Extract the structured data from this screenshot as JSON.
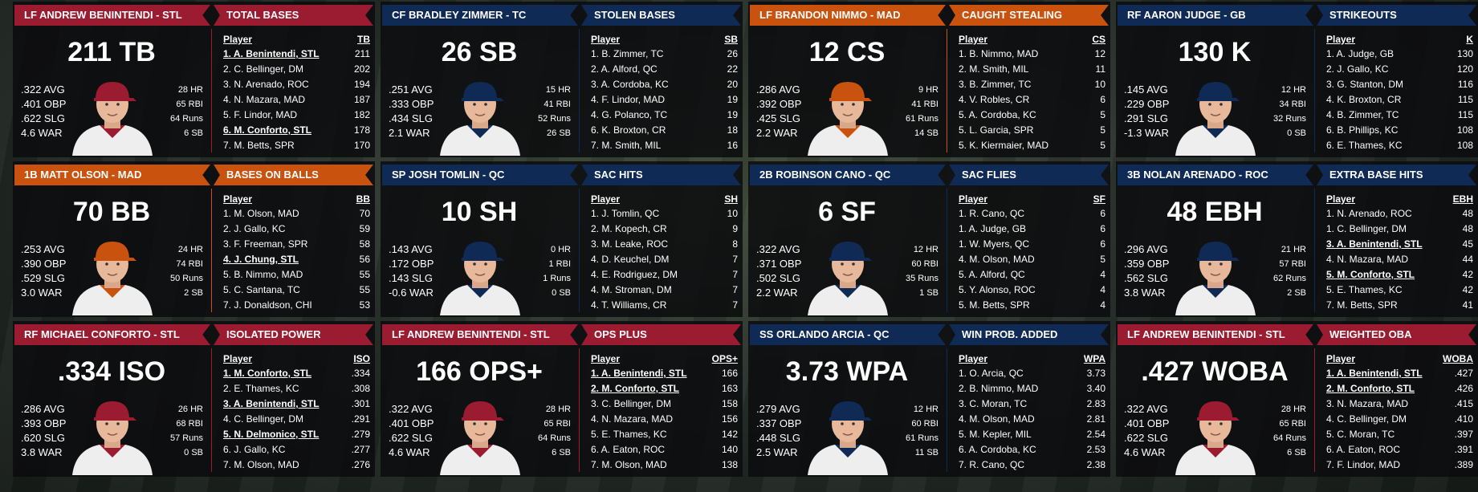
{
  "panels": [
    {
      "color": "#9b1b30",
      "player_banner": "LF ANDREW BENINTENDI - STL",
      "stat_banner": "TOTAL BASES",
      "headline": "211 TB",
      "left_stats": [
        ".322 AVG",
        ".401 OBP",
        ".622 SLG",
        "4.6 WAR"
      ],
      "right_stats": [
        "28 HR",
        "65 RBI",
        "64 Runs",
        "6 SB"
      ],
      "table": {
        "header": [
          "Player",
          "TB"
        ],
        "rows": [
          {
            "player": "1. A. Benintendi, STL",
            "value": "211",
            "highlight": true
          },
          {
            "player": "2. C. Bellinger, DM",
            "value": "202"
          },
          {
            "player": "3. N. Arenado, ROC",
            "value": "194"
          },
          {
            "player": "4. N. Mazara, MAD",
            "value": "187"
          },
          {
            "player": "5. F. Lindor, MAD",
            "value": "182"
          },
          {
            "player": "6. M. Conforto, STL",
            "value": "178",
            "highlight": true
          },
          {
            "player": "7. M. Betts, SPR",
            "value": "170"
          }
        ]
      }
    },
    {
      "color": "#0f2a55",
      "player_banner": "CF BRADLEY ZIMMER - TC",
      "stat_banner": "STOLEN BASES",
      "headline": "26 SB",
      "left_stats": [
        ".251 AVG",
        ".333 OBP",
        ".434 SLG",
        "2.1 WAR"
      ],
      "right_stats": [
        "15 HR",
        "41 RBI",
        "52 Runs",
        "26 SB"
      ],
      "table": {
        "header": [
          "Player",
          "SB"
        ],
        "rows": [
          {
            "player": "1. B. Zimmer, TC",
            "value": "26"
          },
          {
            "player": "2. A. Alford, QC",
            "value": "22"
          },
          {
            "player": "3. A. Cordoba, KC",
            "value": "20"
          },
          {
            "player": "4. F. Lindor, MAD",
            "value": "19"
          },
          {
            "player": "4. G. Polanco, TC",
            "value": "19"
          },
          {
            "player": "6. K. Broxton, CR",
            "value": "18"
          },
          {
            "player": "7. M. Smith, MIL",
            "value": "16"
          }
        ]
      }
    },
    {
      "color": "#c9530e",
      "player_banner": "LF BRANDON NIMMO - MAD",
      "stat_banner": "CAUGHT STEALING",
      "headline": "12 CS",
      "left_stats": [
        ".286 AVG",
        ".392 OBP",
        ".425 SLG",
        "2.2 WAR"
      ],
      "right_stats": [
        "9 HR",
        "41 RBI",
        "61 Runs",
        "14 SB"
      ],
      "table": {
        "header": [
          "Player",
          "CS"
        ],
        "rows": [
          {
            "player": "1. B. Nimmo, MAD",
            "value": "12"
          },
          {
            "player": "2. M. Smith, MIL",
            "value": "11"
          },
          {
            "player": "3. B. Zimmer, TC",
            "value": "10"
          },
          {
            "player": "4. V. Robles, CR",
            "value": "6"
          },
          {
            "player": "5. A. Cordoba, KC",
            "value": "5"
          },
          {
            "player": "5. L. Garcia, SPR",
            "value": "5"
          },
          {
            "player": "5. K. Kiermaier, MAD",
            "value": "5"
          }
        ]
      }
    },
    {
      "color": "#0f2a55",
      "player_banner": "RF AARON JUDGE - GB",
      "stat_banner": "STRIKEOUTS",
      "headline": "130 K",
      "left_stats": [
        ".145 AVG",
        ".229 OBP",
        ".291 SLG",
        "-1.3 WAR"
      ],
      "right_stats": [
        "12 HR",
        "34 RBI",
        "32 Runs",
        "0 SB"
      ],
      "table": {
        "header": [
          "Player",
          "K"
        ],
        "rows": [
          {
            "player": "1. A. Judge, GB",
            "value": "130"
          },
          {
            "player": "2. J. Gallo, KC",
            "value": "120"
          },
          {
            "player": "3. G. Stanton, DM",
            "value": "116"
          },
          {
            "player": "4. K. Broxton, CR",
            "value": "115"
          },
          {
            "player": "4. B. Zimmer, TC",
            "value": "115"
          },
          {
            "player": "6. B. Phillips, KC",
            "value": "108"
          },
          {
            "player": "6. E. Thames, KC",
            "value": "108"
          }
        ]
      }
    },
    {
      "color": "#c9530e",
      "player_banner": "1B MATT OLSON - MAD",
      "stat_banner": "BASES ON BALLS",
      "headline": "70 BB",
      "left_stats": [
        ".253 AVG",
        ".390 OBP",
        ".529 SLG",
        "3.0 WAR"
      ],
      "right_stats": [
        "24 HR",
        "74 RBI",
        "50 Runs",
        "2 SB"
      ],
      "table": {
        "header": [
          "Player",
          "BB"
        ],
        "rows": [
          {
            "player": "1. M. Olson, MAD",
            "value": "70"
          },
          {
            "player": "2. J. Gallo, KC",
            "value": "59"
          },
          {
            "player": "3. F. Freeman, SPR",
            "value": "58"
          },
          {
            "player": "4. J. Chung, STL",
            "value": "56",
            "highlight": true
          },
          {
            "player": "5. B. Nimmo, MAD",
            "value": "55"
          },
          {
            "player": "5. C. Santana, TC",
            "value": "55"
          },
          {
            "player": "7. J. Donaldson, CHI",
            "value": "53"
          }
        ]
      }
    },
    {
      "color": "#0f2a55",
      "player_banner": "SP JOSH TOMLIN - QC",
      "stat_banner": "SAC HITS",
      "headline": "10 SH",
      "left_stats": [
        ".143 AVG",
        ".172 OBP",
        ".143 SLG",
        "-0.6 WAR"
      ],
      "right_stats": [
        "0 HR",
        "1 RBI",
        "1 Runs",
        "0 SB"
      ],
      "table": {
        "header": [
          "Player",
          "SH"
        ],
        "rows": [
          {
            "player": "1. J. Tomlin, QC",
            "value": "10"
          },
          {
            "player": "2. M. Kopech, CR",
            "value": "9"
          },
          {
            "player": "3. M. Leake, ROC",
            "value": "8"
          },
          {
            "player": "4. D. Keuchel, DM",
            "value": "7"
          },
          {
            "player": "4. E. Rodriguez, DM",
            "value": "7"
          },
          {
            "player": "4. M. Stroman, DM",
            "value": "7"
          },
          {
            "player": "4. T. Williams, CR",
            "value": "7"
          }
        ]
      }
    },
    {
      "color": "#0f2a55",
      "player_banner": "2B ROBINSON CANO - QC",
      "stat_banner": "SAC FLIES",
      "headline": "6 SF",
      "left_stats": [
        ".322 AVG",
        ".371 OBP",
        ".502 SLG",
        "2.2 WAR"
      ],
      "right_stats": [
        "12 HR",
        "60 RBI",
        "35 Runs",
        "1 SB"
      ],
      "table": {
        "header": [
          "Player",
          "SF"
        ],
        "rows": [
          {
            "player": "1. R. Cano, QC",
            "value": "6"
          },
          {
            "player": "1. A. Judge, GB",
            "value": "6"
          },
          {
            "player": "1. W. Myers, QC",
            "value": "6"
          },
          {
            "player": "4. M. Olson, MAD",
            "value": "5"
          },
          {
            "player": "5. A. Alford, QC",
            "value": "4"
          },
          {
            "player": "5. Y. Alonso, ROC",
            "value": "4"
          },
          {
            "player": "5. M. Betts, SPR",
            "value": "4"
          }
        ]
      }
    },
    {
      "color": "#0f2a55",
      "player_banner": "3B NOLAN ARENADO - ROC",
      "stat_banner": "EXTRA BASE HITS",
      "headline": "48 EBH",
      "left_stats": [
        ".296 AVG",
        ".359 OBP",
        ".562 SLG",
        "3.8 WAR"
      ],
      "right_stats": [
        "21 HR",
        "57 RBI",
        "62 Runs",
        "2 SB"
      ],
      "table": {
        "header": [
          "Player",
          "EBH"
        ],
        "rows": [
          {
            "player": "1. N. Arenado, ROC",
            "value": "48"
          },
          {
            "player": "1. C. Bellinger, DM",
            "value": "48"
          },
          {
            "player": "3. A. Benintendi, STL",
            "value": "45",
            "highlight": true
          },
          {
            "player": "4. N. Mazara, MAD",
            "value": "44"
          },
          {
            "player": "5. M. Conforto, STL",
            "value": "42",
            "highlight": true
          },
          {
            "player": "5. E. Thames, KC",
            "value": "42"
          },
          {
            "player": "7. M. Betts, SPR",
            "value": "41"
          }
        ]
      }
    },
    {
      "color": "#9b1b30",
      "player_banner": "RF MICHAEL CONFORTO - STL",
      "stat_banner": "ISOLATED POWER",
      "headline": ".334 ISO",
      "left_stats": [
        ".286 AVG",
        ".393 OBP",
        ".620 SLG",
        "3.8 WAR"
      ],
      "right_stats": [
        "26 HR",
        "68 RBI",
        "57 Runs",
        "0 SB"
      ],
      "table": {
        "header": [
          "Player",
          "ISO"
        ],
        "rows": [
          {
            "player": "1. M. Conforto, STL",
            "value": ".334",
            "highlight": true
          },
          {
            "player": "2. E. Thames, KC",
            "value": ".308"
          },
          {
            "player": "3. A. Benintendi, STL",
            "value": ".301",
            "highlight": true
          },
          {
            "player": "4. C. Bellinger, DM",
            "value": ".291"
          },
          {
            "player": "5. N. Delmonico, STL",
            "value": ".279",
            "highlight": true
          },
          {
            "player": "6. J. Gallo, KC",
            "value": ".277"
          },
          {
            "player": "7. M. Olson, MAD",
            "value": ".276"
          }
        ]
      }
    },
    {
      "color": "#9b1b30",
      "player_banner": "LF ANDREW BENINTENDI - STL",
      "stat_banner": "OPS PLUS",
      "headline": "166 OPS+",
      "left_stats": [
        ".322 AVG",
        ".401 OBP",
        ".622 SLG",
        "4.6 WAR"
      ],
      "right_stats": [
        "28 HR",
        "65 RBI",
        "64 Runs",
        "6 SB"
      ],
      "table": {
        "header": [
          "Player",
          "OPS+"
        ],
        "rows": [
          {
            "player": "1. A. Benintendi, STL",
            "value": "166",
            "highlight": true
          },
          {
            "player": "2. M. Conforto, STL",
            "value": "163",
            "highlight": true
          },
          {
            "player": "3. C. Bellinger, DM",
            "value": "158"
          },
          {
            "player": "4. N. Mazara, MAD",
            "value": "156"
          },
          {
            "player": "5. E. Thames, KC",
            "value": "142"
          },
          {
            "player": "6. A. Eaton, ROC",
            "value": "140"
          },
          {
            "player": "7. M. Olson, MAD",
            "value": "138"
          }
        ]
      }
    },
    {
      "color": "#0f2a55",
      "player_banner": "SS ORLANDO ARCIA - QC",
      "stat_banner": "WIN PROB. ADDED",
      "headline": "3.73 WPA",
      "left_stats": [
        ".279 AVG",
        ".337 OBP",
        ".448 SLG",
        "2.5 WAR"
      ],
      "right_stats": [
        "12 HR",
        "60 RBI",
        "61 Runs",
        "11 SB"
      ],
      "table": {
        "header": [
          "Player",
          "WPA"
        ],
        "rows": [
          {
            "player": "1. O. Arcia, QC",
            "value": "3.73"
          },
          {
            "player": "2. B. Nimmo, MAD",
            "value": "3.40"
          },
          {
            "player": "3. C. Moran, TC",
            "value": "2.83"
          },
          {
            "player": "4. M. Olson, MAD",
            "value": "2.81"
          },
          {
            "player": "5. M. Kepler, MIL",
            "value": "2.54"
          },
          {
            "player": "6. A. Cordoba, KC",
            "value": "2.53"
          },
          {
            "player": "7. R. Cano, QC",
            "value": "2.38"
          }
        ]
      }
    },
    {
      "color": "#9b1b30",
      "player_banner": "LF ANDREW BENINTENDI - STL",
      "stat_banner": "WEIGHTED OBA",
      "headline": ".427 WOBA",
      "left_stats": [
        ".322 AVG",
        ".401 OBP",
        ".622 SLG",
        "4.6 WAR"
      ],
      "right_stats": [
        "28 HR",
        "65 RBI",
        "64 Runs",
        "6 SB"
      ],
      "table": {
        "header": [
          "Player",
          "WOBA"
        ],
        "rows": [
          {
            "player": "1. A. Benintendi, STL",
            "value": ".427",
            "highlight": true
          },
          {
            "player": "2. M. Conforto, STL",
            "value": ".426",
            "highlight": true
          },
          {
            "player": "3. N. Mazara, MAD",
            "value": ".415"
          },
          {
            "player": "4. C. Bellinger, DM",
            "value": ".410"
          },
          {
            "player": "5. C. Moran, TC",
            "value": ".397"
          },
          {
            "player": "6. A. Eaton, ROC",
            "value": ".391"
          },
          {
            "player": "7. F. Lindor, MAD",
            "value": ".389"
          }
        ]
      }
    }
  ]
}
